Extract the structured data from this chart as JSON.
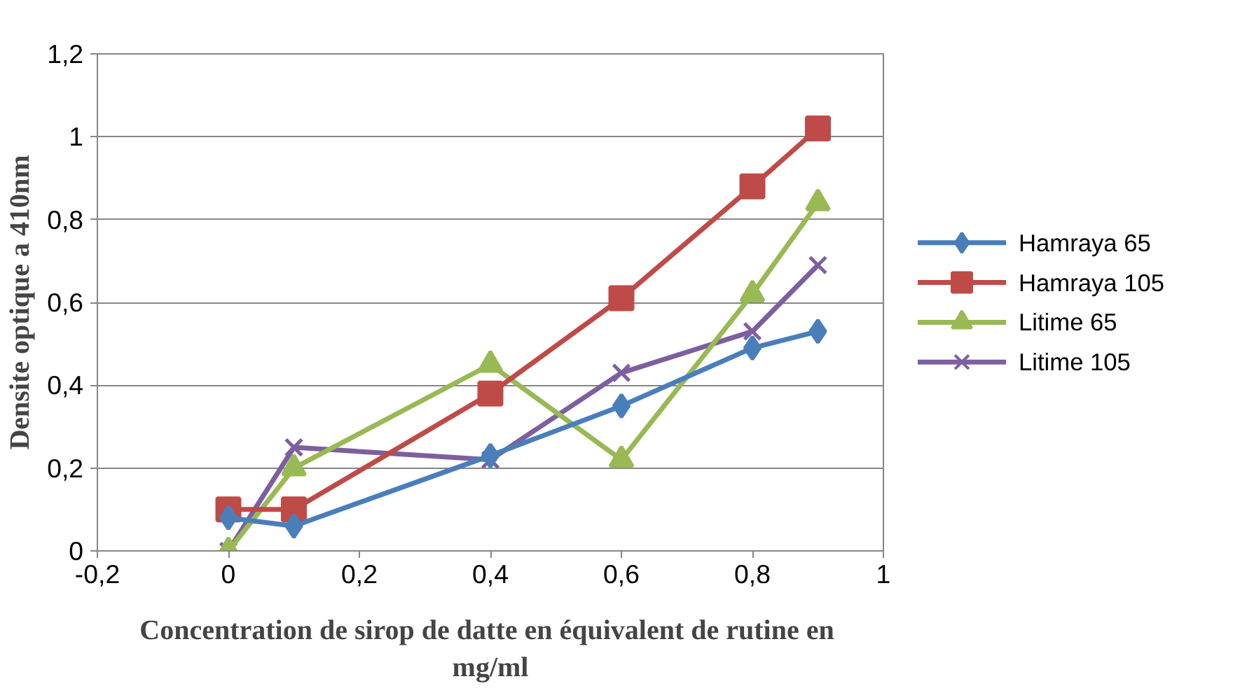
{
  "chart_data": {
    "type": "line",
    "xlabel": "Concentration de sirop de datte en équivalent de rutine  en mg/ml",
    "ylabel": "Densite optique a 410nm",
    "x": [
      0,
      0.1,
      0.4,
      0.6,
      0.8,
      0.9
    ],
    "series": [
      {
        "name": "Hamraya 65",
        "color": "#4a7ebb",
        "marker": "diamond",
        "values": [
          0.08,
          0.06,
          0.23,
          0.35,
          0.49,
          0.53
        ]
      },
      {
        "name": "Hamraya 105",
        "color": "#be4b48",
        "marker": "square",
        "values": [
          0.1,
          0.1,
          0.38,
          0.61,
          0.88,
          1.02
        ]
      },
      {
        "name": "Litime 65",
        "color": "#98b954",
        "marker": "triangle",
        "values": [
          0.0,
          0.2,
          0.45,
          0.22,
          0.62,
          0.84
        ]
      },
      {
        "name": "Litime 105",
        "color": "#7d5fa0",
        "marker": "cross",
        "values": [
          0.0,
          0.25,
          0.22,
          0.43,
          0.53,
          0.69
        ]
      }
    ],
    "xlim": [
      -0.2,
      1
    ],
    "ylim": [
      0,
      1.2
    ],
    "xticks": [
      {
        "value": -0.2,
        "label": "-0,2"
      },
      0,
      {
        "value": 0.2,
        "label": "0,2"
      },
      {
        "value": 0.4,
        "label": "0,4"
      },
      {
        "value": 0.6,
        "label": "0,6"
      },
      {
        "value": 0.8,
        "label": "0,8"
      },
      1
    ],
    "yticks": [
      0,
      {
        "value": 0.2,
        "label": "0,2"
      },
      {
        "value": 0.4,
        "label": "0,4"
      },
      {
        "value": 0.6,
        "label": "0,6"
      },
      {
        "value": 0.8,
        "label": "0,8"
      },
      1,
      {
        "value": 1.2,
        "label": "1,2"
      }
    ],
    "grid": "y",
    "legend": "right",
    "line_style": "solid"
  }
}
